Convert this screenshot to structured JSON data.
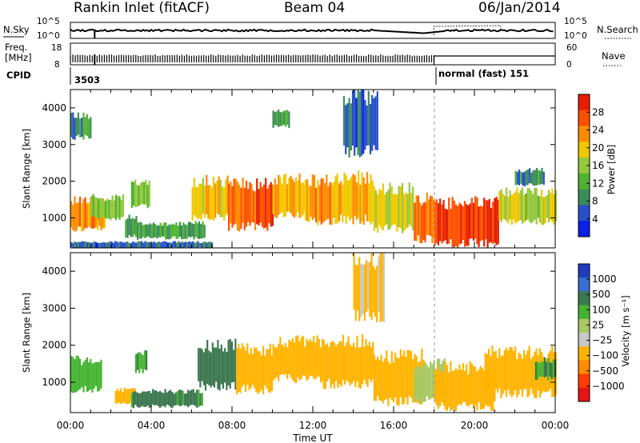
{
  "header": {
    "station": "Rankin Inlet (fitACF)",
    "beam": "Beam 04",
    "date": "06/Jan/2014"
  },
  "noise_panel": {
    "left_label": "N.Sky",
    "left_ticks": [
      "10^5",
      "10^0"
    ],
    "right_ticks": [
      "10^5",
      "10^0"
    ],
    "right_label": "N.Search"
  },
  "freq_panel": {
    "left_label_1": "Freq.",
    "left_label_2": "[MHz]",
    "left_ticks": [
      "18",
      "8"
    ],
    "right_ticks": [
      "60",
      "0"
    ],
    "right_label": "Nave"
  },
  "cpid_panel": {
    "label": "CPID",
    "segments": [
      {
        "text": "3503",
        "start_hour": 0
      },
      {
        "text": "normal (fast) 151",
        "start_hour": 18
      }
    ]
  },
  "panels": {
    "ylabel": "Slant Range [km]",
    "xlabel": "Time UT"
  },
  "colors": {
    "power": [
      "#0a1ee6",
      "#2850c8",
      "#3c8c5a",
      "#50b432",
      "#96c83c",
      "#f0c800",
      "#ff8c00",
      "#ff5000",
      "#e61e00"
    ],
    "velocity": [
      "#1e3cbe",
      "#3a6fd0",
      "#3c7850",
      "#46b432",
      "#a8c864",
      "#c8c8c8",
      "#ffb400",
      "#ff8c00",
      "#ff3c00",
      "#e61414"
    ]
  },
  "colorbars": {
    "power": {
      "label": "Power [dB]",
      "ticks": [
        "28",
        "24",
        "20",
        "16",
        "12",
        "8",
        "4"
      ]
    },
    "velocity": {
      "label": "Velocity [m s⁻¹]",
      "ticks": [
        "1000",
        "500",
        "100",
        "25",
        "−25",
        "−100",
        "−500",
        "−1000"
      ]
    }
  },
  "chart_data": [
    {
      "type": "heatmap",
      "title": "Power",
      "xlabel": "Time UT",
      "ylabel": "Slant Range [km]",
      "x_ticks": [
        "00:00",
        "04:00",
        "08:00",
        "12:00",
        "16:00",
        "20:00",
        "00:00"
      ],
      "xlim_hours": [
        0,
        24
      ],
      "y_ticks": [
        1000,
        2000,
        3000,
        4000
      ],
      "ylim": [
        180,
        4500
      ],
      "colorbar": "Power [dB]",
      "colorbar_range": [
        0,
        30
      ],
      "regions": [
        {
          "t": [
            0.0,
            1.7
          ],
          "r": [
            700,
            1500
          ],
          "v": 22
        },
        {
          "t": [
            1.0,
            2.6
          ],
          "r": [
            1000,
            1550
          ],
          "v": 14
        },
        {
          "t": [
            2.7,
            3.3
          ],
          "r": [
            500,
            1000
          ],
          "v": 8
        },
        {
          "t": [
            3.0,
            3.9
          ],
          "r": [
            1300,
            1950
          ],
          "v": 13
        },
        {
          "t": [
            3.2,
            6.6
          ],
          "r": [
            450,
            850
          ],
          "v": 10
        },
        {
          "t": [
            6.0,
            7.8
          ],
          "r": [
            1000,
            2000
          ],
          "v": 18
        },
        {
          "t": [
            7.8,
            10.0
          ],
          "r": [
            750,
            1900
          ],
          "v": 25
        },
        {
          "t": [
            10.0,
            11.6
          ],
          "r": [
            1100,
            2050
          ],
          "v": 20
        },
        {
          "t": [
            11.6,
            13.0
          ],
          "r": [
            900,
            2000
          ],
          "v": 22
        },
        {
          "t": [
            13.0,
            15.0
          ],
          "r": [
            950,
            2100
          ],
          "v": 19
        },
        {
          "t": [
            15.0,
            17.0
          ],
          "r": [
            700,
            1800
          ],
          "v": 17
        },
        {
          "t": [
            17.0,
            18.0
          ],
          "r": [
            400,
            1500
          ],
          "v": 23
        },
        {
          "t": [
            18.0,
            21.2
          ],
          "r": [
            300,
            1400
          ],
          "v": 27
        },
        {
          "t": [
            21.2,
            24.0
          ],
          "r": [
            900,
            1700
          ],
          "v": 16
        },
        {
          "t": [
            22.0,
            23.4
          ],
          "r": [
            1900,
            2300
          ],
          "v": 8
        },
        {
          "t": [
            0.0,
            7.0
          ],
          "r": [
            180,
            340
          ],
          "v": 6
        },
        {
          "t": [
            13.5,
            15.2
          ],
          "r": [
            2800,
            4300
          ],
          "v": 6
        },
        {
          "t": [
            0.0,
            1.0
          ],
          "r": [
            3200,
            3800
          ],
          "v": 8
        },
        {
          "t": [
            10.0,
            10.8
          ],
          "r": [
            3500,
            3900
          ],
          "v": 10
        }
      ]
    },
    {
      "type": "heatmap",
      "title": "Velocity",
      "xlabel": "Time UT",
      "ylabel": "Slant Range [km]",
      "x_ticks": [
        "00:00",
        "04:00",
        "08:00",
        "12:00",
        "16:00",
        "20:00",
        "00:00"
      ],
      "xlim_hours": [
        0,
        24
      ],
      "y_ticks": [
        1000,
        2000,
        3000,
        4000
      ],
      "ylim": [
        180,
        4500
      ],
      "colorbar": "Velocity [m s⁻¹]",
      "colorbar_levels": [
        1000,
        500,
        100,
        25,
        -25,
        -100,
        -500,
        -1000
      ],
      "regions": [
        {
          "t": [
            0.0,
            1.5
          ],
          "r": [
            800,
            1600
          ],
          "v": 80
        },
        {
          "t": [
            2.2,
            3.2
          ],
          "r": [
            450,
            800
          ],
          "v": -150
        },
        {
          "t": [
            3.0,
            6.5
          ],
          "r": [
            350,
            750
          ],
          "v": 120
        },
        {
          "t": [
            3.2,
            3.8
          ],
          "r": [
            1300,
            1800
          ],
          "v": 100
        },
        {
          "t": [
            6.3,
            8.2
          ],
          "r": [
            900,
            2000
          ],
          "v": 150
        },
        {
          "t": [
            8.2,
            10.0
          ],
          "r": [
            800,
            1900
          ],
          "v": -200
        },
        {
          "t": [
            10.0,
            12.5
          ],
          "r": [
            1100,
            2100
          ],
          "v": -250
        },
        {
          "t": [
            12.5,
            15.0
          ],
          "r": [
            950,
            2100
          ],
          "v": -200
        },
        {
          "t": [
            15.0,
            17.5
          ],
          "r": [
            500,
            1700
          ],
          "v": -150
        },
        {
          "t": [
            17.0,
            18.5
          ],
          "r": [
            500,
            1500
          ],
          "v": 0
        },
        {
          "t": [
            18.0,
            21.0
          ],
          "r": [
            350,
            1400
          ],
          "v": -300
        },
        {
          "t": [
            20.5,
            24.0
          ],
          "r": [
            700,
            1800
          ],
          "v": -150
        },
        {
          "t": [
            23.0,
            24.0
          ],
          "r": [
            1100,
            1600
          ],
          "v": 100
        },
        {
          "t": [
            14.0,
            15.5
          ],
          "r": [
            2800,
            4300
          ],
          "v": -120
        }
      ]
    }
  ]
}
